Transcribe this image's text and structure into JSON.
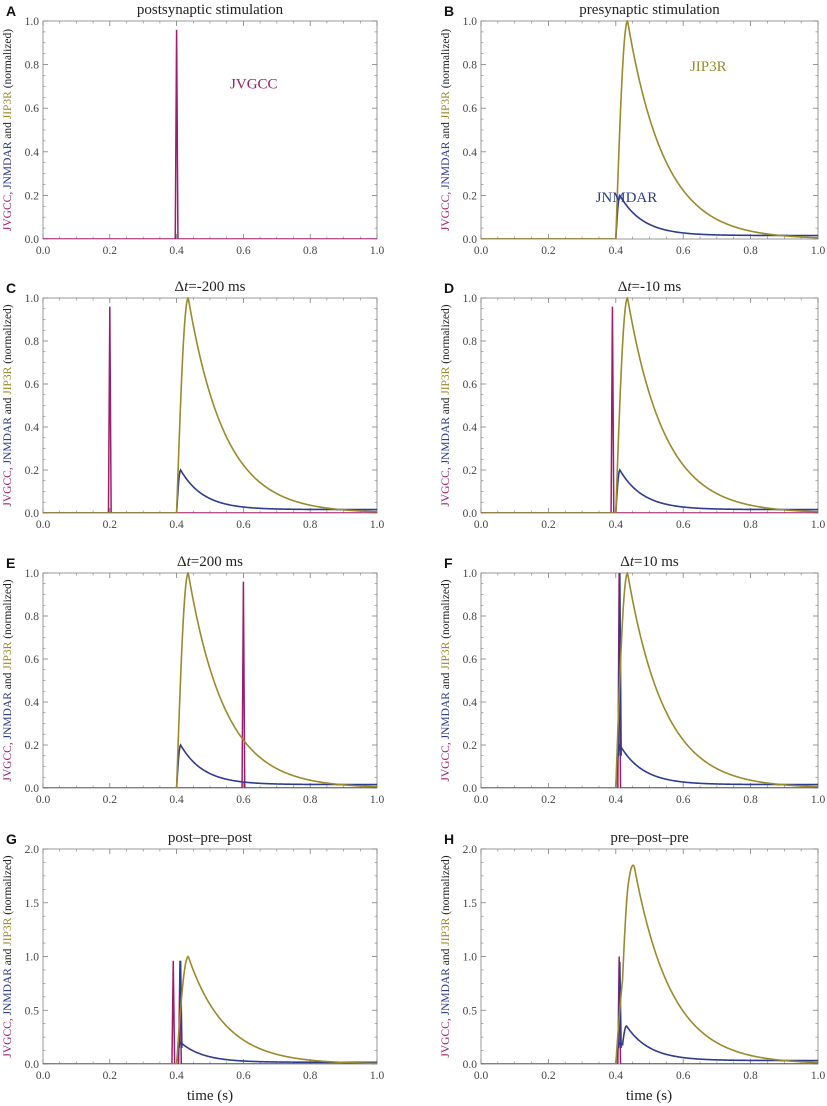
{
  "figure": {
    "xlabel_left": "time (s)",
    "xlabel_right": "time (s)"
  },
  "ylabel_parts": {
    "jvgcc": "JVGCC,",
    "jnmdar": "JNMDAR",
    "and": "and",
    "jip3r": "JIP3R",
    "normalized": "(normalized)"
  },
  "colors": {
    "jvgcc": "#9b1d6b",
    "jnmdar": "#2e3c8f",
    "jip3r": "#9b8a2a",
    "frame": "#7f7f7f",
    "text": "#222222"
  },
  "chart_data": [
    {
      "id": "A",
      "panel_label": "A",
      "type": "line",
      "title": "postsynaptic stimulation",
      "xlim": [
        0,
        1
      ],
      "ylim": [
        0,
        1.0
      ],
      "xticks": [
        "0.0",
        "0.2",
        "0.4",
        "0.6",
        "0.8",
        "1.0"
      ],
      "yticks": [
        "0.0",
        "0.2",
        "0.4",
        "0.6",
        "0.8",
        "1.0"
      ],
      "series": [
        {
          "name": "JVGCC",
          "spikes": [
            {
              "t": 0.4,
              "h": 0.96
            }
          ]
        }
      ],
      "annotations": [
        {
          "text": "JVGCC",
          "series": "jvgcc",
          "x": 0.56,
          "y": 0.69
        }
      ]
    },
    {
      "id": "B",
      "panel_label": "B",
      "type": "line",
      "title": "presynaptic stimulation",
      "xlim": [
        0,
        1
      ],
      "ylim": [
        0,
        1.0
      ],
      "xticks": [
        "0.0",
        "0.2",
        "0.4",
        "0.6",
        "0.8",
        "1.0"
      ],
      "yticks": [
        "0.0",
        "0.2",
        "0.4",
        "0.6",
        "0.8",
        "1.0"
      ],
      "series": [
        {
          "name": "JNMDAR",
          "onsets": [
            0.4
          ],
          "scale": 0.2
        },
        {
          "name": "JIP3R",
          "onsets": [
            0.4
          ],
          "scale": 1.0
        }
      ],
      "annotations": [
        {
          "text": "JIP3R",
          "series": "jip3r",
          "x": 0.62,
          "y": 0.77
        },
        {
          "text": "JNMDAR",
          "series": "jnmdar",
          "x": 0.34,
          "y": 0.17
        }
      ]
    },
    {
      "id": "C",
      "panel_label": "C",
      "type": "line",
      "title": "Δt=-200 ms",
      "title_prefix": "Δ",
      "title_italic": "t",
      "title_suffix": "=-200 ms",
      "xlim": [
        0,
        1
      ],
      "ylim": [
        0,
        1.0
      ],
      "xticks": [
        "0.0",
        "0.2",
        "0.4",
        "0.6",
        "0.8",
        "1.0"
      ],
      "yticks": [
        "0.0",
        "0.2",
        "0.4",
        "0.6",
        "0.8",
        "1.0"
      ],
      "series": [
        {
          "name": "JVGCC",
          "spikes": [
            {
              "t": 0.2,
              "h": 0.96
            }
          ]
        },
        {
          "name": "JNMDAR",
          "onsets": [
            0.4
          ],
          "scale": 0.2
        },
        {
          "name": "JIP3R",
          "onsets": [
            0.4
          ],
          "scale": 1.0
        }
      ]
    },
    {
      "id": "D",
      "panel_label": "D",
      "type": "line",
      "title": "Δt=-10 ms",
      "title_prefix": "Δ",
      "title_italic": "t",
      "title_suffix": "=-10 ms",
      "xlim": [
        0,
        1
      ],
      "ylim": [
        0,
        1.0
      ],
      "xticks": [
        "0.0",
        "0.2",
        "0.4",
        "0.6",
        "0.8",
        "1.0"
      ],
      "yticks": [
        "0.0",
        "0.2",
        "0.4",
        "0.6",
        "0.8",
        "1.0"
      ],
      "series": [
        {
          "name": "JVGCC",
          "spikes": [
            {
              "t": 0.39,
              "h": 0.96
            }
          ]
        },
        {
          "name": "JNMDAR",
          "onsets": [
            0.4
          ],
          "scale": 0.2
        },
        {
          "name": "JIP3R",
          "onsets": [
            0.4
          ],
          "scale": 1.0
        }
      ]
    },
    {
      "id": "E",
      "panel_label": "E",
      "type": "line",
      "title": "Δt=200 ms",
      "title_prefix": "Δ",
      "title_italic": "t",
      "title_suffix": "=200 ms",
      "xlim": [
        0,
        1
      ],
      "ylim": [
        0,
        1.0
      ],
      "xticks": [
        "0.0",
        "0.2",
        "0.4",
        "0.6",
        "0.8",
        "1.0"
      ],
      "yticks": [
        "0.0",
        "0.2",
        "0.4",
        "0.6",
        "0.8",
        "1.0"
      ],
      "series": [
        {
          "name": "JVGCC",
          "spikes": [
            {
              "t": 0.6,
              "h": 0.96
            }
          ]
        },
        {
          "name": "JNMDAR",
          "onsets": [
            0.4
          ],
          "scale": 0.2
        },
        {
          "name": "JIP3R",
          "onsets": [
            0.4
          ],
          "scale": 1.0
        }
      ]
    },
    {
      "id": "F",
      "panel_label": "F",
      "type": "line",
      "title": "Δt=10 ms",
      "title_prefix": "Δ",
      "title_italic": "t",
      "title_suffix": "=10 ms",
      "xlim": [
        0,
        1
      ],
      "ylim": [
        0,
        1.0
      ],
      "xticks": [
        "0.0",
        "0.2",
        "0.4",
        "0.6",
        "0.8",
        "1.0"
      ],
      "yticks": [
        "0.0",
        "0.2",
        "0.4",
        "0.6",
        "0.8",
        "1.0"
      ],
      "series": [
        {
          "name": "JVGCC",
          "spikes": [
            {
              "t": 0.41,
              "h": 1.0
            }
          ]
        },
        {
          "name": "JNMDAR",
          "onsets": [
            0.4
          ],
          "scale": 0.2,
          "spike": 1.0
        },
        {
          "name": "JIP3R",
          "onsets": [
            0.4
          ],
          "scale": 1.0
        }
      ]
    },
    {
      "id": "G",
      "panel_label": "G",
      "type": "line",
      "title": "post–pre–post",
      "xlim": [
        0,
        1
      ],
      "ylim": [
        0,
        2.0
      ],
      "xticks": [
        "0.0",
        "0.2",
        "0.4",
        "0.6",
        "0.8",
        "1.0"
      ],
      "yticks": [
        "0.0",
        "0.5",
        "1.0",
        "1.5",
        "2.0"
      ],
      "series": [
        {
          "name": "JVGCC",
          "spikes": [
            {
              "t": 0.39,
              "h": 0.96
            },
            {
              "t": 0.41,
              "h": 0.96
            }
          ]
        },
        {
          "name": "JNMDAR",
          "onsets": [
            0.4
          ],
          "scale": 0.2,
          "spike": 0.96
        },
        {
          "name": "JIP3R",
          "onsets": [
            0.4
          ],
          "scale": 1.0
        }
      ]
    },
    {
      "id": "H",
      "panel_label": "H",
      "type": "line",
      "title": "pre–post–pre",
      "xlim": [
        0,
        1
      ],
      "ylim": [
        0,
        2.0
      ],
      "xticks": [
        "0.0",
        "0.2",
        "0.4",
        "0.6",
        "0.8",
        "1.0"
      ],
      "yticks": [
        "0.0",
        "0.5",
        "1.0",
        "1.5",
        "2.0"
      ],
      "series": [
        {
          "name": "JVGCC",
          "spikes": [
            {
              "t": 0.41,
              "h": 1.0
            }
          ]
        },
        {
          "name": "JNMDAR",
          "onsets": [
            0.4,
            0.42
          ],
          "scale": 0.2,
          "spike": 0.95
        },
        {
          "name": "JIP3R",
          "onsets": [
            0.4,
            0.42
          ],
          "scale": 1.0
        }
      ]
    }
  ]
}
